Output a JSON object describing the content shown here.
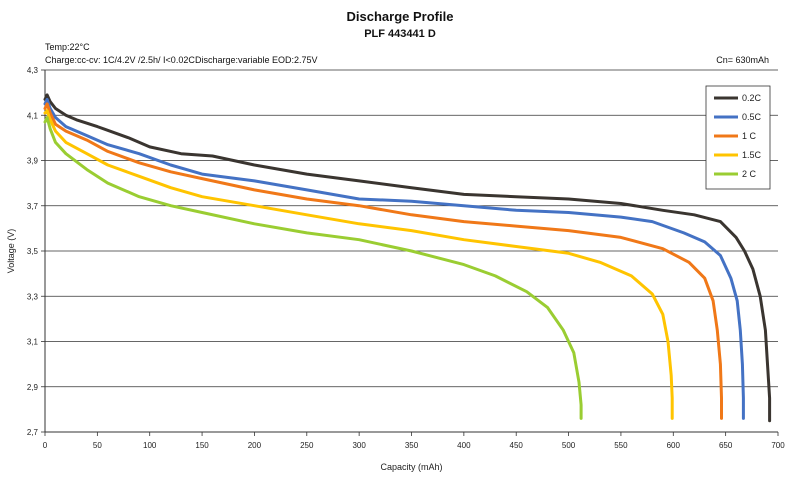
{
  "chart_data": {
    "type": "line",
    "title": "Discharge Profile",
    "subtitle": "PLF 443441 D",
    "notes": {
      "temp": "Temp:22°C",
      "charge": "Charge:cc-cv: 1C/4.2V /2.5h/ I<0.02C",
      "discharge": "Discharge:variable EOD:2.75V",
      "capacity": "Cn= 630mAh"
    },
    "xlabel": "Capacity (mAh)",
    "ylabel": "Voltage (V)",
    "xlim": [
      0,
      700
    ],
    "ylim": [
      2.7,
      4.3
    ],
    "xticks": [
      "0",
      "50",
      "100",
      "150",
      "200",
      "250",
      "300",
      "350",
      "400",
      "450",
      "500",
      "550",
      "600",
      "650",
      "700"
    ],
    "yticks": [
      "2,7",
      "2,9",
      "3,1",
      "3,3",
      "3,5",
      "3,7",
      "3,9",
      "4,1",
      "4,3"
    ],
    "grid": "horizontal",
    "legend_position": "top-right",
    "series": [
      {
        "name": "0.2C",
        "color": "#3a3530",
        "points": [
          [
            0,
            4.17
          ],
          [
            2,
            4.19
          ],
          [
            5,
            4.16
          ],
          [
            10,
            4.13
          ],
          [
            20,
            4.1
          ],
          [
            30,
            4.08
          ],
          [
            50,
            4.05
          ],
          [
            80,
            4.0
          ],
          [
            100,
            3.96
          ],
          [
            130,
            3.93
          ],
          [
            160,
            3.92
          ],
          [
            200,
            3.88
          ],
          [
            250,
            3.84
          ],
          [
            300,
            3.81
          ],
          [
            350,
            3.78
          ],
          [
            400,
            3.75
          ],
          [
            450,
            3.74
          ],
          [
            500,
            3.73
          ],
          [
            550,
            3.71
          ],
          [
            590,
            3.68
          ],
          [
            620,
            3.66
          ],
          [
            645,
            3.63
          ],
          [
            660,
            3.56
          ],
          [
            668,
            3.5
          ],
          [
            676,
            3.42
          ],
          [
            683,
            3.3
          ],
          [
            688,
            3.15
          ],
          [
            690,
            3.0
          ],
          [
            692,
            2.85
          ],
          [
            692,
            2.75
          ]
        ]
      },
      {
        "name": "0.5C",
        "color": "#4472c4",
        "points": [
          [
            0,
            4.15
          ],
          [
            2,
            4.17
          ],
          [
            5,
            4.13
          ],
          [
            10,
            4.09
          ],
          [
            20,
            4.05
          ],
          [
            40,
            4.01
          ],
          [
            60,
            3.97
          ],
          [
            90,
            3.93
          ],
          [
            120,
            3.88
          ],
          [
            150,
            3.84
          ],
          [
            200,
            3.81
          ],
          [
            250,
            3.77
          ],
          [
            300,
            3.73
          ],
          [
            350,
            3.72
          ],
          [
            400,
            3.7
          ],
          [
            450,
            3.68
          ],
          [
            500,
            3.67
          ],
          [
            550,
            3.65
          ],
          [
            580,
            3.63
          ],
          [
            610,
            3.58
          ],
          [
            630,
            3.54
          ],
          [
            645,
            3.48
          ],
          [
            655,
            3.38
          ],
          [
            661,
            3.28
          ],
          [
            664,
            3.15
          ],
          [
            666,
            3.0
          ],
          [
            667,
            2.85
          ],
          [
            667,
            2.76
          ]
        ]
      },
      {
        "name": "1 C",
        "color": "#f07818",
        "points": [
          [
            0,
            4.13
          ],
          [
            2,
            4.15
          ],
          [
            5,
            4.11
          ],
          [
            10,
            4.06
          ],
          [
            20,
            4.03
          ],
          [
            40,
            3.99
          ],
          [
            60,
            3.94
          ],
          [
            90,
            3.89
          ],
          [
            120,
            3.85
          ],
          [
            150,
            3.82
          ],
          [
            200,
            3.77
          ],
          [
            250,
            3.73
          ],
          [
            300,
            3.7
          ],
          [
            350,
            3.66
          ],
          [
            400,
            3.63
          ],
          [
            450,
            3.61
          ],
          [
            500,
            3.59
          ],
          [
            550,
            3.56
          ],
          [
            590,
            3.51
          ],
          [
            615,
            3.45
          ],
          [
            630,
            3.38
          ],
          [
            638,
            3.28
          ],
          [
            642,
            3.15
          ],
          [
            645,
            3.0
          ],
          [
            646,
            2.85
          ],
          [
            646,
            2.76
          ]
        ]
      },
      {
        "name": "1.5C",
        "color": "#ffc400",
        "points": [
          [
            0,
            4.11
          ],
          [
            2,
            4.12
          ],
          [
            5,
            4.08
          ],
          [
            10,
            4.03
          ],
          [
            20,
            3.98
          ],
          [
            40,
            3.93
          ],
          [
            60,
            3.88
          ],
          [
            90,
            3.83
          ],
          [
            120,
            3.78
          ],
          [
            150,
            3.74
          ],
          [
            200,
            3.7
          ],
          [
            250,
            3.66
          ],
          [
            300,
            3.62
          ],
          [
            350,
            3.59
          ],
          [
            400,
            3.55
          ],
          [
            450,
            3.52
          ],
          [
            500,
            3.49
          ],
          [
            530,
            3.45
          ],
          [
            560,
            3.39
          ],
          [
            580,
            3.31
          ],
          [
            590,
            3.22
          ],
          [
            595,
            3.1
          ],
          [
            598,
            2.95
          ],
          [
            599,
            2.85
          ],
          [
            599,
            2.76
          ]
        ]
      },
      {
        "name": "2 C",
        "color": "#9acd32",
        "points": [
          [
            0,
            4.07
          ],
          [
            2,
            4.09
          ],
          [
            5,
            4.04
          ],
          [
            10,
            3.98
          ],
          [
            20,
            3.93
          ],
          [
            40,
            3.86
          ],
          [
            60,
            3.8
          ],
          [
            90,
            3.74
          ],
          [
            120,
            3.7
          ],
          [
            150,
            3.67
          ],
          [
            200,
            3.62
          ],
          [
            250,
            3.58
          ],
          [
            300,
            3.55
          ],
          [
            350,
            3.5
          ],
          [
            400,
            3.44
          ],
          [
            430,
            3.39
          ],
          [
            460,
            3.32
          ],
          [
            480,
            3.25
          ],
          [
            495,
            3.15
          ],
          [
            505,
            3.05
          ],
          [
            510,
            2.92
          ],
          [
            512,
            2.82
          ],
          [
            512,
            2.76
          ]
        ]
      }
    ]
  }
}
